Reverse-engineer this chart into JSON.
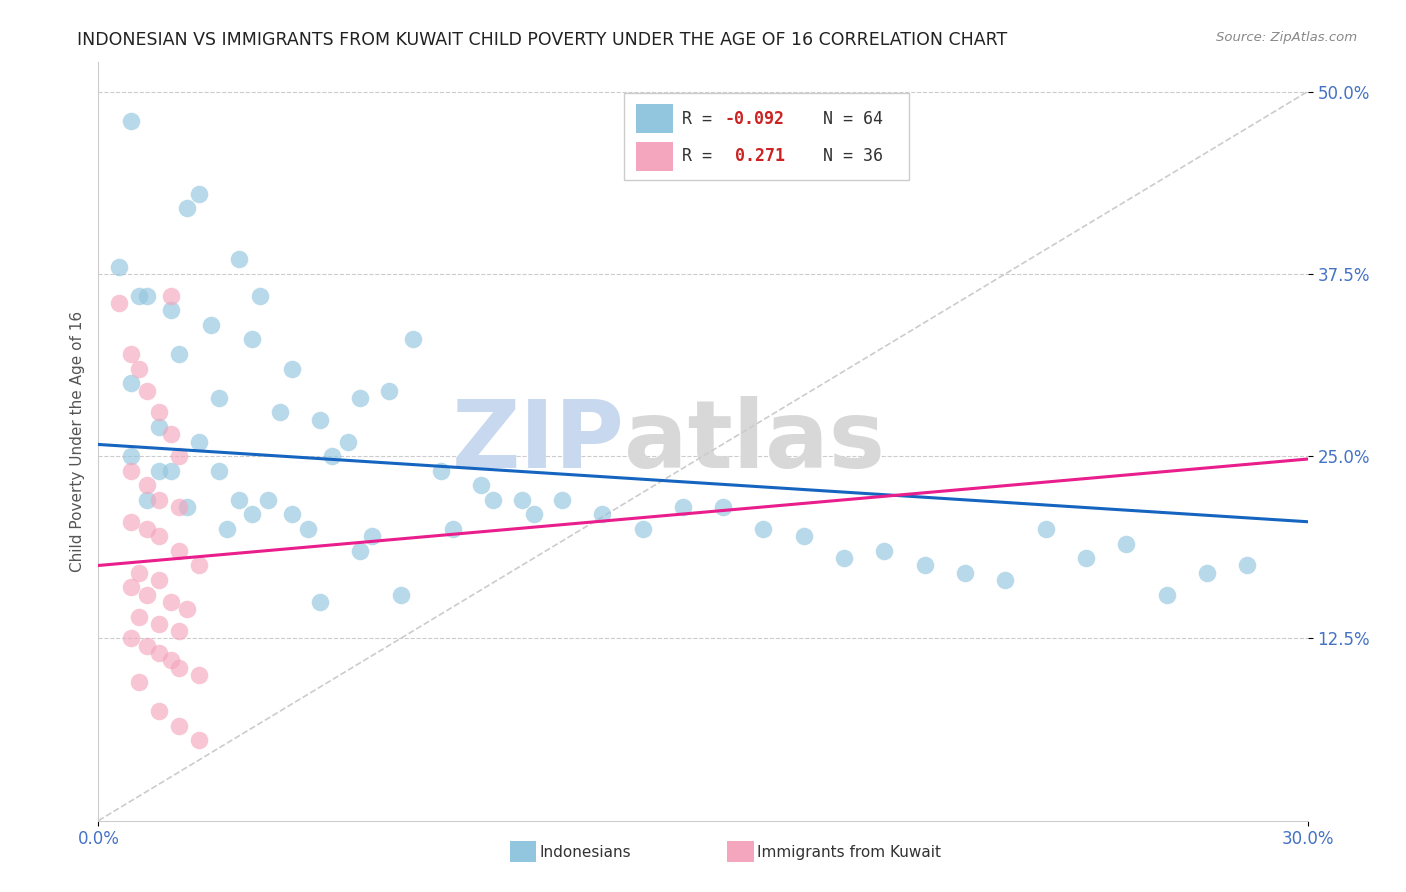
{
  "title": "INDONESIAN VS IMMIGRANTS FROM KUWAIT CHILD POVERTY UNDER THE AGE OF 16 CORRELATION CHART",
  "source": "Source: ZipAtlas.com",
  "ylabel": "Child Poverty Under the Age of 16",
  "xlim": [
    0.0,
    0.3
  ],
  "ylim": [
    0.0,
    0.52
  ],
  "ytick_positions": [
    0.125,
    0.25,
    0.375,
    0.5
  ],
  "ytick_labels": [
    "12.5%",
    "25.0%",
    "37.5%",
    "50.0%"
  ],
  "xtick_positions": [
    0.0,
    0.3
  ],
  "xtick_labels": [
    "0.0%",
    "30.0%"
  ],
  "blue_color": "#92c5de",
  "pink_color": "#f4a6be",
  "line_blue": "#1565c0",
  "line_pink": "#e91e8c",
  "diagonal_color": "#cccccc",
  "watermark_zip": "ZIP",
  "watermark_atlas": "atlas",
  "tick_color": "#4472c4",
  "blue_line_start_y": 0.258,
  "blue_line_end_y": 0.205,
  "pink_line_start_y": 0.175,
  "pink_line_end_y": 0.248,
  "indonesians_x": [
    0.015,
    0.008,
    0.025,
    0.005,
    0.012,
    0.018,
    0.022,
    0.008,
    0.03,
    0.035,
    0.04,
    0.028,
    0.045,
    0.055,
    0.038,
    0.065,
    0.072,
    0.048,
    0.058,
    0.078,
    0.062,
    0.085,
    0.095,
    0.105,
    0.115,
    0.125,
    0.135,
    0.145,
    0.155,
    0.165,
    0.175,
    0.185,
    0.195,
    0.205,
    0.215,
    0.225,
    0.235,
    0.245,
    0.255,
    0.265,
    0.275,
    0.285,
    0.01,
    0.02,
    0.03,
    0.008,
    0.015,
    0.025,
    0.035,
    0.042,
    0.052,
    0.048,
    0.055,
    0.065,
    0.075,
    0.032,
    0.018,
    0.012,
    0.022,
    0.068,
    0.038,
    0.088,
    0.098,
    0.108
  ],
  "indonesians_y": [
    0.24,
    0.48,
    0.43,
    0.38,
    0.36,
    0.35,
    0.42,
    0.3,
    0.29,
    0.385,
    0.36,
    0.34,
    0.28,
    0.275,
    0.33,
    0.29,
    0.295,
    0.31,
    0.25,
    0.33,
    0.26,
    0.24,
    0.23,
    0.22,
    0.22,
    0.21,
    0.2,
    0.215,
    0.215,
    0.2,
    0.195,
    0.18,
    0.185,
    0.175,
    0.17,
    0.165,
    0.2,
    0.18,
    0.19,
    0.155,
    0.17,
    0.175,
    0.36,
    0.32,
    0.24,
    0.25,
    0.27,
    0.26,
    0.22,
    0.22,
    0.2,
    0.21,
    0.15,
    0.185,
    0.155,
    0.2,
    0.24,
    0.22,
    0.215,
    0.195,
    0.21,
    0.2,
    0.22,
    0.21
  ],
  "kuwait_x": [
    0.005,
    0.008,
    0.01,
    0.012,
    0.015,
    0.018,
    0.02,
    0.008,
    0.012,
    0.015,
    0.02,
    0.008,
    0.012,
    0.015,
    0.018,
    0.02,
    0.025,
    0.01,
    0.015,
    0.008,
    0.012,
    0.018,
    0.022,
    0.01,
    0.015,
    0.02,
    0.008,
    0.012,
    0.015,
    0.018,
    0.02,
    0.025,
    0.01,
    0.015,
    0.02,
    0.025
  ],
  "kuwait_y": [
    0.355,
    0.32,
    0.31,
    0.295,
    0.28,
    0.265,
    0.25,
    0.24,
    0.23,
    0.22,
    0.215,
    0.205,
    0.2,
    0.195,
    0.36,
    0.185,
    0.175,
    0.17,
    0.165,
    0.16,
    0.155,
    0.15,
    0.145,
    0.14,
    0.135,
    0.13,
    0.125,
    0.12,
    0.115,
    0.11,
    0.105,
    0.1,
    0.095,
    0.075,
    0.065,
    0.055
  ]
}
